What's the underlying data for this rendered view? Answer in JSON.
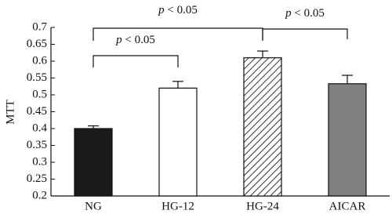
{
  "chart_data": {
    "type": "bar",
    "y_label": "MTT",
    "categories": [
      "NG",
      "HG-12",
      "HG-24",
      "AICAR"
    ],
    "values": [
      0.4,
      0.52,
      0.61,
      0.533
    ],
    "errors": [
      0.008,
      0.02,
      0.02,
      0.025
    ],
    "fills": [
      "#1a1a1a",
      "#ffffff",
      "diagonal-hatch",
      "#808080"
    ],
    "ylim": [
      0.2,
      0.7
    ],
    "yticks": [
      0.2,
      0.25,
      0.3,
      0.35,
      0.4,
      0.45,
      0.5,
      0.55,
      0.6,
      0.65,
      0.7
    ],
    "annotations": [
      {
        "text": "p < 0.05",
        "from": 0,
        "to": 2
      },
      {
        "text": "p < 0.05",
        "from": 0,
        "to": 1
      },
      {
        "text": "p < 0.05",
        "from": 2,
        "to": 3
      }
    ]
  }
}
